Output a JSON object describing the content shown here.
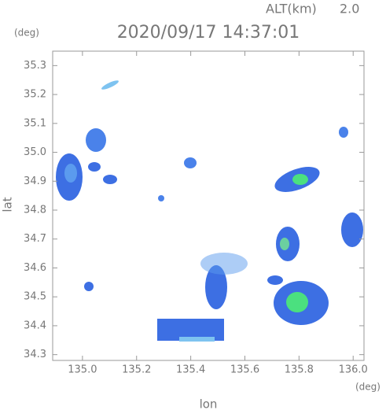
{
  "chart_data": {
    "type": "radar-map",
    "title": "2020/09/17 14:37:01",
    "altitude_label": "ALT(km)",
    "altitude": "2.0",
    "y_unit": "(deg)",
    "x_unit": "(deg)",
    "xlabel": "lon",
    "ylabel": "lat",
    "xlim": [
      134.89,
      136.04
    ],
    "ylim": [
      34.28,
      35.35
    ],
    "xticks": [
      {
        "value": 135,
        "label": "135.0"
      },
      135.2,
      135.4,
      135.6,
      135.8,
      {
        "value": 136,
        "label": "136.0"
      }
    ],
    "yticks": [
      34.3,
      34.4,
      34.5,
      34.6,
      34.7,
      34.8,
      34.9,
      {
        "value": 35,
        "label": "35.0"
      },
      35.1,
      35.2,
      35.3
    ],
    "frame_color": "#999999"
  }
}
